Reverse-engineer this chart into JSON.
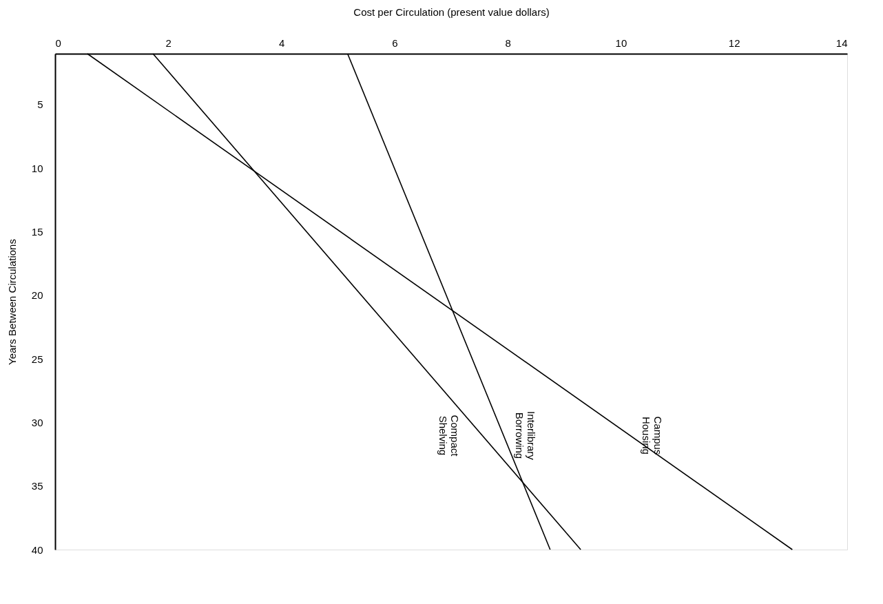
{
  "chart_data": {
    "type": "line",
    "xlabel": "Cost per Circulation (present value dollars)",
    "ylabel": "Years Between Circulations",
    "xlim": [
      0,
      14
    ],
    "xticks": [
      0,
      2,
      4,
      6,
      8,
      10,
      12,
      14
    ],
    "ylim": [
      40,
      1
    ],
    "yticks": [
      5,
      10,
      15,
      20,
      25,
      30,
      35,
      40
    ],
    "grid": false,
    "legend": false,
    "marker": "none",
    "line_style": "solid",
    "series": [
      {
        "name": "Campus Housing",
        "color": "#000000",
        "x": [
          0.57,
          13.03
        ],
        "values": [
          1,
          40
        ]
      },
      {
        "name": "Interlibrary Borrowing",
        "color": "#000000",
        "x": [
          5.17,
          8.75
        ],
        "values": [
          1,
          40
        ]
      },
      {
        "name": "Compact Shelving",
        "color": "#000000",
        "x": [
          1.73,
          9.29
        ],
        "values": [
          1,
          40
        ]
      }
    ]
  }
}
